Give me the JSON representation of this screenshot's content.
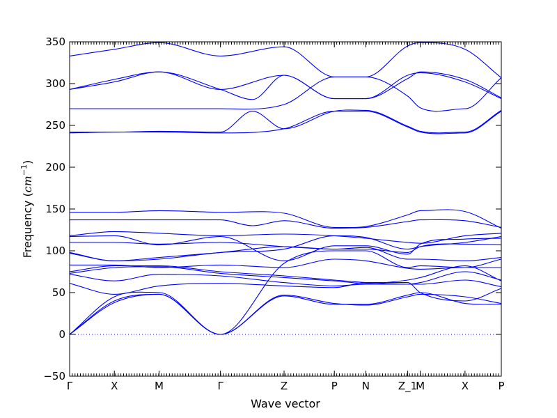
{
  "chart_data": {
    "type": "line",
    "xlabel": "Wave vector",
    "ylabel_prefix": "Frequency (",
    "ylabel_unit": "cm",
    "ylabel_exp": "−1",
    "ylabel_suffix": ")",
    "ylim": [
      -50,
      350
    ],
    "yticks": [
      -50,
      0,
      50,
      100,
      150,
      200,
      250,
      300,
      350
    ],
    "ytick_labels": [
      "−50",
      "0",
      "50",
      "100",
      "150",
      "200",
      "250",
      "300",
      "350"
    ],
    "xlim": [
      0,
      1
    ],
    "xticks": [
      {
        "label": "Γ",
        "x": 0.0
      },
      {
        "label": "X",
        "x": 0.1036
      },
      {
        "label": "M",
        "x": 0.2072
      },
      {
        "label": "Γ",
        "x": 0.3494
      },
      {
        "label": "Z",
        "x": 0.4968
      },
      {
        "label": "P",
        "x": 0.6133
      },
      {
        "label": "N",
        "x": 0.6861
      },
      {
        "label": "Z_1",
        "x": 0.7832
      },
      {
        "label": "M",
        "x": 0.8123
      },
      {
        "label": "X",
        "x": 0.9159
      },
      {
        "label": "P",
        "x": 1.0
      }
    ],
    "zero_line": 0,
    "grid": false,
    "series_color": "#0000ff",
    "series": [
      {
        "x": [
          0,
          0.1036,
          0.2072,
          0.3494,
          0.4968,
          0.6133,
          0.6861,
          0.7832,
          0.8123,
          0.9159,
          1.0
        ],
        "y": [
          333,
          341,
          349,
          333,
          344,
          308,
          308,
          345,
          349,
          341,
          307
        ]
      },
      {
        "x": [
          0,
          0.1036,
          0.2072,
          0.3494,
          0.4237,
          0.4968,
          0.6133,
          0.6861,
          0.7832,
          0.8123,
          0.9159,
          1.0
        ],
        "y": [
          293,
          302,
          314,
          293,
          281,
          310,
          282,
          282,
          310,
          313,
          302,
          282
        ]
      },
      {
        "x": [
          0,
          0.1036,
          0.2072,
          0.3494,
          0.4968,
          0.6133,
          0.6861,
          0.7832,
          0.8123,
          0.9159,
          1.0
        ],
        "y": [
          293,
          305,
          314,
          293,
          310,
          282,
          282,
          306,
          314,
          305,
          283
        ]
      },
      {
        "x": [
          0,
          0.1036,
          0.2072,
          0.3494,
          0.4968,
          0.6133,
          0.6861,
          0.7832,
          0.8123,
          0.9159,
          1.0
        ],
        "y": [
          270,
          270,
          270,
          270,
          275,
          308,
          308,
          285,
          271,
          270,
          307
        ]
      },
      {
        "x": [
          0,
          0.1036,
          0.2072,
          0.3494,
          0.4237,
          0.4968,
          0.6133,
          0.6861,
          0.7832,
          0.8123,
          0.9159,
          1.0
        ],
        "y": [
          242,
          242,
          243,
          242,
          267,
          246,
          267,
          268,
          249,
          243,
          242,
          268
        ]
      },
      {
        "x": [
          0,
          0.1036,
          0.2072,
          0.3494,
          0.4968,
          0.6133,
          0.6861,
          0.7832,
          0.8123,
          0.9159,
          1.0
        ],
        "y": [
          241,
          242,
          242,
          241,
          246,
          267,
          267,
          248,
          242,
          241,
          267
        ]
      },
      {
        "x": [
          0,
          0.1036,
          0.2072,
          0.3494,
          0.4968,
          0.6133,
          0.6861,
          0.7832,
          0.8123,
          0.9159,
          1.0
        ],
        "y": [
          146,
          146,
          148,
          146,
          145,
          128,
          129,
          143,
          148,
          147,
          127
        ]
      },
      {
        "x": [
          0,
          0.1036,
          0.2072,
          0.3494,
          0.4237,
          0.4968,
          0.6133,
          0.6861,
          0.7832,
          0.8123,
          0.9159,
          1.0
        ],
        "y": [
          137,
          137,
          137,
          137,
          130,
          136,
          127,
          128,
          135,
          137,
          136,
          128
        ]
      },
      {
        "x": [
          0,
          0.1036,
          0.2072,
          0.3494,
          0.4968,
          0.6133,
          0.6861,
          0.7832,
          0.8123,
          0.9159,
          1.0
        ],
        "y": [
          118,
          123,
          121,
          118,
          120,
          118,
          115,
          110,
          109,
          118,
          121
        ]
      },
      {
        "x": [
          0,
          0.1036,
          0.2072,
          0.3494,
          0.4968,
          0.6133,
          0.6861,
          0.7832,
          0.8123,
          0.9159,
          1.0
        ],
        "y": [
          117,
          118,
          107,
          117,
          88,
          106,
          106,
          96,
          108,
          114,
          115
        ]
      },
      {
        "x": [
          0,
          0.1036,
          0.2072,
          0.3494,
          0.4968,
          0.6133,
          0.6861,
          0.7832,
          0.8123,
          0.9159,
          1.0
        ],
        "y": [
          110,
          110,
          108,
          110,
          105,
          102,
          102,
          98,
          105,
          108,
          107
        ]
      },
      {
        "x": [
          0,
          0.1036,
          0.2072,
          0.3494,
          0.4968,
          0.6133,
          0.6861,
          0.7832,
          0.8123,
          0.9159,
          1.0
        ],
        "y": [
          98,
          88,
          90,
          98,
          102,
          118,
          116,
          102,
          105,
          110,
          117
        ]
      },
      {
        "x": [
          0,
          0.1036,
          0.2072,
          0.3494,
          0.4968,
          0.6133,
          0.6861,
          0.7832,
          0.8123,
          0.9159,
          1.0
        ],
        "y": [
          97,
          88,
          92,
          98,
          105,
          102,
          104,
          90,
          90,
          88,
          92
        ]
      },
      {
        "x": [
          0,
          0.1036,
          0.2072,
          0.3494,
          0.4968,
          0.6133,
          0.6861,
          0.7832,
          0.8123,
          0.9159,
          1.0
        ],
        "y": [
          83,
          83,
          80,
          83,
          80,
          90,
          88,
          79,
          78,
          80,
          80
        ]
      },
      {
        "x": [
          0,
          0.1036,
          0.2072,
          0.3494,
          0.4968,
          0.6133,
          0.6861,
          0.7832,
          0.8123,
          0.9159,
          1.0
        ],
        "y": [
          75,
          82,
          82,
          75,
          70,
          65,
          62,
          60,
          62,
          75,
          65
        ]
      },
      {
        "x": [
          0,
          0.1036,
          0.2072,
          0.3494,
          0.4968,
          0.6133,
          0.6861,
          0.7832,
          0.8123,
          0.9159,
          1.0
        ],
        "y": [
          73,
          80,
          81,
          73,
          68,
          64,
          61,
          65,
          68,
          82,
          64
        ]
      },
      {
        "x": [
          0,
          0.1036,
          0.2072,
          0.3494,
          0.4968,
          0.6133,
          0.6861,
          0.7832,
          0.8123,
          0.9159,
          1.0
        ],
        "y": [
          72,
          64,
          72,
          70,
          62,
          58,
          60,
          60,
          60,
          65,
          57
        ]
      },
      {
        "x": [
          0,
          0.1036,
          0.2072,
          0.3494,
          0.4968,
          0.6133,
          0.6861,
          0.7832,
          0.8123,
          0.9159,
          1.0
        ],
        "y": [
          61,
          48,
          58,
          61,
          58,
          56,
          62,
          62,
          50,
          40,
          55
        ]
      },
      {
        "x": [
          0,
          0.1036,
          0.2072,
          0.3494,
          0.4968,
          0.6133,
          0.6861,
          0.7832,
          0.8123,
          0.9159,
          1.0
        ],
        "y": [
          0,
          45,
          50,
          0,
          47,
          37,
          35,
          45,
          48,
          45,
          37
        ]
      },
      {
        "x": [
          0,
          0.1036,
          0.2072,
          0.3494,
          0.4968,
          0.6133,
          0.6861,
          0.7832,
          0.8123,
          0.9159,
          1.0
        ],
        "y": [
          0,
          40,
          48,
          0,
          46,
          36,
          36,
          47,
          50,
          37,
          36
        ]
      },
      {
        "x": [
          0,
          0.1036,
          0.2072,
          0.3494,
          0.4968,
          0.6133,
          0.6861,
          0.7832,
          0.8123,
          0.9159,
          1.0
        ],
        "y": [
          0,
          38,
          48,
          0,
          85,
          100,
          100,
          80,
          82,
          80,
          90
        ]
      }
    ]
  }
}
